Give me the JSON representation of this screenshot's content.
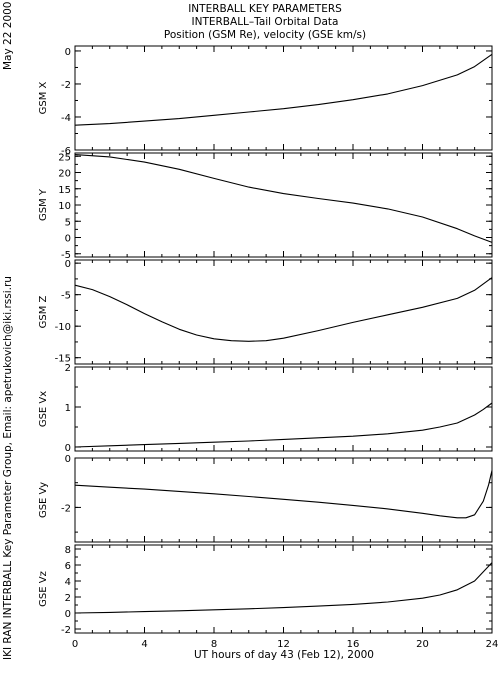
{
  "header": {
    "line1": "INTERBALL KEY PARAMETERS",
    "line2": "INTERBALL–Tail Orbital Data",
    "line3": "Position (GSM Re), velocity (GSE km/s)"
  },
  "side": {
    "date": "May 22 2000",
    "credit": "IKI RAN INTERBALL Key Parameter Group, Email: apetrukovich@iki.rssi.ru"
  },
  "chart_data": {
    "type": "line",
    "xlabel": "UT hours of day  43 (Feb 12), 2000",
    "xlim": [
      0,
      24
    ],
    "xticks": [
      "0",
      "4",
      "8",
      "12",
      "16",
      "20",
      "24"
    ],
    "panels": [
      {
        "ylabel": "GSM X",
        "ylim": [
          -6,
          0.3
        ],
        "yticks": [
          "0",
          "-2",
          "-4",
          "-6"
        ],
        "yticks_values": [
          0,
          -2,
          -4,
          -6
        ],
        "x": [
          0,
          2,
          4,
          6,
          8,
          10,
          12,
          14,
          16,
          18,
          20,
          22,
          23,
          24
        ],
        "y": [
          -4.5,
          -4.4,
          -4.25,
          -4.1,
          -3.9,
          -3.7,
          -3.5,
          -3.25,
          -2.95,
          -2.6,
          -2.1,
          -1.45,
          -0.95,
          -0.2
        ]
      },
      {
        "ylabel": "GSM Y",
        "ylim": [
          -6,
          26
        ],
        "yticks": [
          "25",
          "20",
          "15",
          "10",
          "5",
          "0",
          "-5"
        ],
        "yticks_values": [
          25,
          20,
          15,
          10,
          5,
          0,
          -5
        ],
        "x": [
          0,
          2,
          4,
          6,
          8,
          10,
          12,
          14,
          16,
          18,
          20,
          22,
          23,
          24
        ],
        "y": [
          25.5,
          24.8,
          23.2,
          21.0,
          18.2,
          15.5,
          13.5,
          12.0,
          10.6,
          8.8,
          6.3,
          2.7,
          0.5,
          -1.5
        ]
      },
      {
        "ylabel": "GSM Z",
        "ylim": [
          -16,
          0.5
        ],
        "yticks": [
          "0",
          "-5",
          "-10",
          "-15"
        ],
        "yticks_values": [
          0,
          -5,
          -10,
          -15
        ],
        "x": [
          0,
          1,
          2,
          3,
          4,
          5,
          6,
          7,
          8,
          9,
          10,
          11,
          12,
          14,
          16,
          18,
          20,
          22,
          23,
          24
        ],
        "y": [
          -3.5,
          -4.2,
          -5.3,
          -6.6,
          -8.0,
          -9.3,
          -10.5,
          -11.4,
          -12.0,
          -12.3,
          -12.4,
          -12.3,
          -11.9,
          -10.7,
          -9.4,
          -8.2,
          -7.0,
          -5.6,
          -4.3,
          -2.3
        ]
      },
      {
        "ylabel": "GSE Vx",
        "ylim": [
          -0.1,
          2
        ],
        "yticks": [
          "2",
          "1",
          "0"
        ],
        "yticks_values": [
          2,
          1,
          0
        ],
        "x": [
          0,
          2,
          4,
          6,
          8,
          10,
          12,
          14,
          16,
          18,
          20,
          21,
          22,
          23,
          23.5,
          24
        ],
        "y": [
          0.0,
          0.03,
          0.06,
          0.09,
          0.12,
          0.15,
          0.19,
          0.23,
          0.27,
          0.33,
          0.42,
          0.5,
          0.6,
          0.8,
          0.94,
          1.1
        ]
      },
      {
        "ylabel": "GSE Vy",
        "ylim": [
          -3.4,
          0
        ],
        "yticks": [
          "0",
          "-2"
        ],
        "yticks_values": [
          0,
          -2
        ],
        "x": [
          0,
          2,
          4,
          6,
          8,
          10,
          12,
          14,
          16,
          18,
          20,
          21,
          22,
          22.5,
          23,
          23.5,
          23.8,
          24
        ],
        "y": [
          -1.1,
          -1.18,
          -1.26,
          -1.35,
          -1.45,
          -1.56,
          -1.67,
          -1.79,
          -1.92,
          -2.06,
          -2.24,
          -2.34,
          -2.42,
          -2.42,
          -2.3,
          -1.75,
          -1.1,
          -0.5
        ]
      },
      {
        "ylabel": "GSE Vz",
        "ylim": [
          -2.5,
          8.5
        ],
        "yticks": [
          "8",
          "6",
          "4",
          "2",
          "0",
          "-2"
        ],
        "yticks_values": [
          8,
          6,
          4,
          2,
          0,
          -2
        ],
        "x": [
          0,
          2,
          4,
          6,
          8,
          10,
          12,
          14,
          16,
          18,
          20,
          21,
          22,
          23,
          24
        ],
        "y": [
          0.0,
          0.08,
          0.17,
          0.28,
          0.4,
          0.53,
          0.68,
          0.86,
          1.08,
          1.38,
          1.85,
          2.25,
          2.9,
          4.0,
          6.3
        ]
      }
    ]
  }
}
